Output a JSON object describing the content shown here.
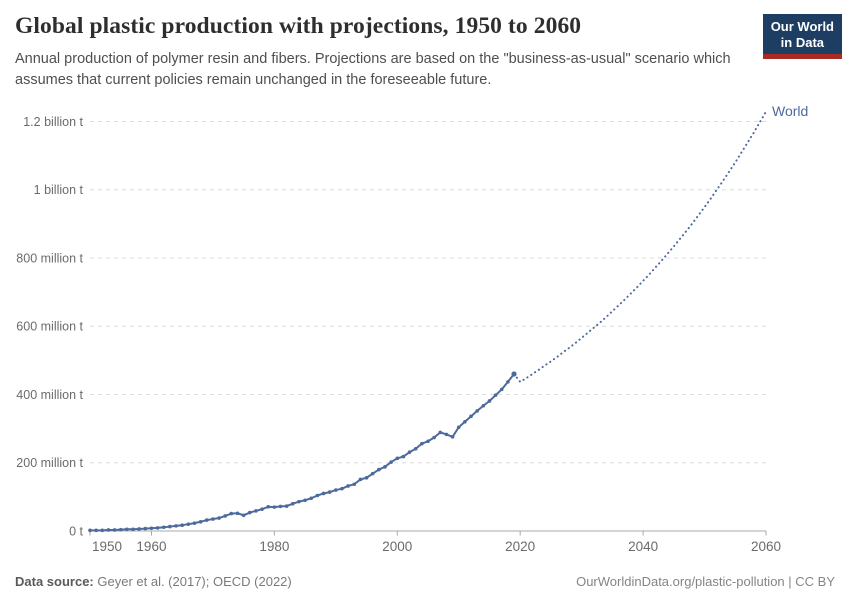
{
  "header": {
    "title": "Global plastic production with projections, 1950 to 2060",
    "subtitle": "Annual production of polymer resin and fibers. Projections are based on the \"business-as-usual\" scenario which assumes that current policies remain unchanged in the foreseeable future.",
    "logo": {
      "line1": "Our World",
      "line2": "in Data",
      "bg_color": "#1d3d63",
      "accent_color": "#a82c21"
    }
  },
  "chart_data": {
    "type": "line",
    "title": "Global plastic production with projections, 1950 to 2060",
    "unit": "tonnes",
    "series_label": "World",
    "line_color": "#4c6a9c",
    "gridline_color": "#dcdcdc",
    "axis_color": "#a8a8a8",
    "tick_label_color": "#6b6b6b",
    "grid": true,
    "legend_position": "end-of-line",
    "xlim": [
      1950,
      2060
    ],
    "ylim_million_t": [
      0,
      1200
    ],
    "x_ticks": [
      1950,
      1960,
      1980,
      2000,
      2020,
      2040,
      2060
    ],
    "y_ticks": [
      {
        "value": 0,
        "label": "0 t"
      },
      {
        "value": 200,
        "label": "200 million t"
      },
      {
        "value": 400,
        "label": "400 million t"
      },
      {
        "value": 600,
        "label": "600 million t"
      },
      {
        "value": 800,
        "label": "800 million t"
      },
      {
        "value": 1000,
        "label": "1 billion t"
      },
      {
        "value": 1200,
        "label": "1.2 billion t"
      }
    ],
    "series": [
      {
        "name": "World (observed)",
        "style": "solid",
        "points": [
          [
            1950,
            2
          ],
          [
            1951,
            2
          ],
          [
            1952,
            2
          ],
          [
            1953,
            3
          ],
          [
            1954,
            3
          ],
          [
            1955,
            4
          ],
          [
            1956,
            5
          ],
          [
            1957,
            5
          ],
          [
            1958,
            6
          ],
          [
            1959,
            7
          ],
          [
            1960,
            8
          ],
          [
            1961,
            9
          ],
          [
            1962,
            11
          ],
          [
            1963,
            13
          ],
          [
            1964,
            15
          ],
          [
            1965,
            17
          ],
          [
            1966,
            20
          ],
          [
            1967,
            23
          ],
          [
            1968,
            27
          ],
          [
            1969,
            32
          ],
          [
            1970,
            35
          ],
          [
            1971,
            38
          ],
          [
            1972,
            44
          ],
          [
            1973,
            51
          ],
          [
            1974,
            52
          ],
          [
            1975,
            46
          ],
          [
            1976,
            54
          ],
          [
            1977,
            59
          ],
          [
            1978,
            64
          ],
          [
            1979,
            71
          ],
          [
            1980,
            70
          ],
          [
            1981,
            72
          ],
          [
            1982,
            73
          ],
          [
            1983,
            80
          ],
          [
            1984,
            86
          ],
          [
            1985,
            90
          ],
          [
            1986,
            96
          ],
          [
            1987,
            104
          ],
          [
            1988,
            110
          ],
          [
            1989,
            114
          ],
          [
            1990,
            120
          ],
          [
            1991,
            124
          ],
          [
            1992,
            132
          ],
          [
            1993,
            137
          ],
          [
            1994,
            151
          ],
          [
            1995,
            156
          ],
          [
            1996,
            168
          ],
          [
            1997,
            180
          ],
          [
            1998,
            188
          ],
          [
            1999,
            202
          ],
          [
            2000,
            213
          ],
          [
            2001,
            218
          ],
          [
            2002,
            231
          ],
          [
            2003,
            241
          ],
          [
            2004,
            256
          ],
          [
            2005,
            263
          ],
          [
            2006,
            274
          ],
          [
            2007,
            289
          ],
          [
            2008,
            283
          ],
          [
            2009,
            276
          ],
          [
            2010,
            304
          ],
          [
            2011,
            320
          ],
          [
            2012,
            336
          ],
          [
            2013,
            352
          ],
          [
            2014,
            367
          ],
          [
            2015,
            381
          ],
          [
            2016,
            398
          ],
          [
            2017,
            415
          ],
          [
            2018,
            437
          ],
          [
            2019,
            460
          ]
        ]
      },
      {
        "name": "World (projection, business-as-usual)",
        "style": "dotted",
        "points": [
          [
            2019,
            460
          ],
          [
            2020,
            437
          ],
          [
            2021,
            448
          ],
          [
            2022,
            460
          ],
          [
            2023,
            472
          ],
          [
            2024,
            485
          ],
          [
            2025,
            497
          ],
          [
            2026,
            510
          ],
          [
            2027,
            524
          ],
          [
            2028,
            537
          ],
          [
            2029,
            551
          ],
          [
            2030,
            566
          ],
          [
            2031,
            581
          ],
          [
            2032,
            596
          ],
          [
            2033,
            611
          ],
          [
            2034,
            627
          ],
          [
            2035,
            644
          ],
          [
            2036,
            661
          ],
          [
            2037,
            678
          ],
          [
            2038,
            696
          ],
          [
            2039,
            714
          ],
          [
            2040,
            733
          ],
          [
            2041,
            752
          ],
          [
            2042,
            772
          ],
          [
            2043,
            792
          ],
          [
            2044,
            813
          ],
          [
            2045,
            834
          ],
          [
            2046,
            856
          ],
          [
            2047,
            878
          ],
          [
            2048,
            901
          ],
          [
            2049,
            925
          ],
          [
            2050,
            949
          ],
          [
            2051,
            974
          ],
          [
            2052,
            1000
          ],
          [
            2053,
            1026
          ],
          [
            2054,
            1053
          ],
          [
            2055,
            1080
          ],
          [
            2056,
            1109
          ],
          [
            2057,
            1138
          ],
          [
            2058,
            1167
          ],
          [
            2059,
            1198
          ],
          [
            2060,
            1229
          ]
        ]
      }
    ]
  },
  "footer": {
    "source_label": "Data source:",
    "source_value": "Geyer et al. (2017); OECD (2022)",
    "credit": "OurWorldinData.org/plastic-pollution | CC BY"
  }
}
